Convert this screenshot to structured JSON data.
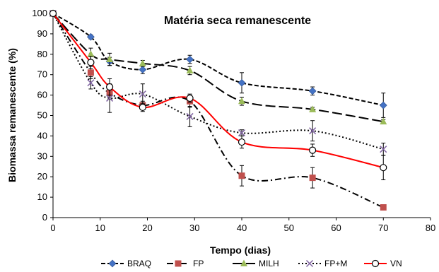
{
  "chart_data": {
    "type": "line",
    "title": "Matéria seca remanescente",
    "xlabel": "Tempo (dias)",
    "ylabel": "Biomassa remanescente (%)",
    "xlim": [
      0,
      80
    ],
    "ylim": [
      0,
      100
    ],
    "xticks": [
      "0",
      "10",
      "20",
      "30",
      "40",
      "50",
      "60",
      "70",
      "80"
    ],
    "yticks": [
      "0",
      "10",
      "20",
      "30",
      "40",
      "50",
      "60",
      "70",
      "80",
      "90",
      "100"
    ],
    "grid": false,
    "legend_position": "bottom",
    "series": [
      {
        "name": "BRAQ",
        "color": "#4472C4",
        "line_color": "#000000",
        "dash": "dashed",
        "marker": "diamond",
        "x": [
          0,
          8,
          12,
          19,
          29,
          40,
          55,
          70
        ],
        "y": [
          100,
          88.5,
          76.5,
          72.5,
          77.5,
          66,
          62,
          55
        ],
        "err": [
          0,
          1,
          2,
          2,
          2,
          5,
          2,
          6
        ]
      },
      {
        "name": "FP",
        "color": "#C0504D",
        "line_color": "#000000",
        "dash": "dashdot",
        "marker": "square",
        "x": [
          0,
          8,
          12,
          19,
          29,
          40,
          55,
          70
        ],
        "y": [
          100,
          71,
          61,
          55,
          57,
          20.5,
          19.5,
          5
        ],
        "err": [
          0,
          3,
          3,
          2,
          3,
          5,
          5,
          0.5
        ]
      },
      {
        "name": "MILH",
        "color": "#9BBB59",
        "line_color": "#000000",
        "dash": "longdash",
        "marker": "triangle",
        "x": [
          0,
          8,
          12,
          19,
          29,
          40,
          55,
          70
        ],
        "y": [
          100,
          80,
          77.5,
          75.5,
          72,
          57,
          53,
          47
        ],
        "err": [
          0,
          3,
          3,
          1.5,
          2,
          2,
          1,
          1
        ]
      },
      {
        "name": "FP+M",
        "color": "#8064A2",
        "line_color": "#000000",
        "dash": "dotted",
        "marker": "x",
        "x": [
          0,
          8,
          12,
          19,
          29,
          40,
          55,
          70
        ],
        "y": [
          100,
          66,
          58.5,
          60.5,
          49.5,
          41.5,
          42.5,
          33.5
        ],
        "err": [
          0,
          3,
          7,
          5,
          5,
          1.5,
          5,
          3
        ]
      },
      {
        "name": "VN",
        "color": "#FF0000",
        "line_color": "#FF0000",
        "dash": "solid",
        "marker": "circle",
        "x": [
          0,
          8,
          12,
          19,
          29,
          40,
          55,
          70
        ],
        "y": [
          100,
          76,
          64,
          54,
          58.5,
          37,
          33,
          24.5
        ],
        "err": [
          0,
          3,
          4,
          2,
          2,
          3,
          3,
          6
        ]
      }
    ]
  }
}
